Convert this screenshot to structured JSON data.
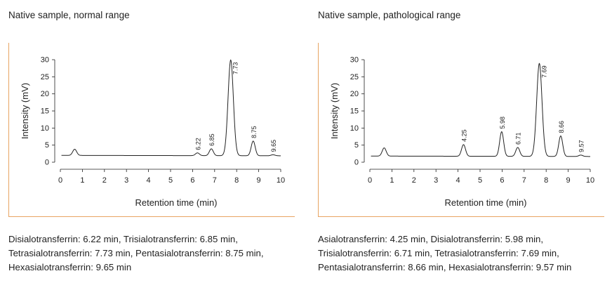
{
  "panels": [
    {
      "title": "Native sample, normal range",
      "caption_lines": [
        "Disialotransferrin: 6.22 min, Trisialotransferrin: 6.85 min,",
        "Tetrasialotransferrin: 7.73 min, Pentasialotransferrin: 8.75 min,",
        "Hexasialotransferrin: 9.65 min"
      ]
    },
    {
      "title": "Native sample, pathological range",
      "caption_lines": [
        "Asialotransferrin: 4.25 min, Disialotransferrin: 5.98 min,",
        "Trisialotransferrin: 6.71 min, Tetrasialotransferrin: 7.69 min,",
        "Pentasialotransferrin: 8.66 min, Hexasialotransferrin: 9.57 min"
      ]
    }
  ],
  "colors": {
    "frame": "#e8a462",
    "trace": "#222222"
  },
  "chart_data": [
    {
      "type": "line",
      "title": "Native sample, normal range",
      "xlabel": "Retention time (min)",
      "ylabel": "Intensity (mV)",
      "xlim": [
        0,
        10
      ],
      "ylim": [
        0,
        30
      ],
      "xticks": [
        0,
        1,
        2,
        3,
        4,
        5,
        6,
        7,
        8,
        9,
        10
      ],
      "yticks": [
        0,
        5,
        10,
        15,
        20,
        25,
        30
      ],
      "baseline": 2.0,
      "peaks": [
        {
          "x": 0.65,
          "height": 1.8,
          "label": ""
        },
        {
          "x": 6.22,
          "height": 0.8,
          "label": "6.22"
        },
        {
          "x": 6.85,
          "height": 2.0,
          "label": "6.85"
        },
        {
          "x": 7.73,
          "height": 28.0,
          "label": "7.73"
        },
        {
          "x": 8.75,
          "height": 4.3,
          "label": "8.75"
        },
        {
          "x": 9.65,
          "height": 0.3,
          "label": "9.65"
        }
      ]
    },
    {
      "type": "line",
      "title": "Native sample, pathological range",
      "xlabel": "Retention time (min)",
      "ylabel": "Intensity (mV)",
      "xlim": [
        0,
        10
      ],
      "ylim": [
        0,
        30
      ],
      "xticks": [
        0,
        1,
        2,
        3,
        4,
        5,
        6,
        7,
        8,
        9,
        10
      ],
      "yticks": [
        0,
        5,
        10,
        15,
        20,
        25,
        30
      ],
      "baseline": 1.8,
      "peaks": [
        {
          "x": 0.65,
          "height": 2.4,
          "label": ""
        },
        {
          "x": 4.25,
          "height": 3.4,
          "label": "4.25"
        },
        {
          "x": 5.98,
          "height": 7.2,
          "label": "5.98"
        },
        {
          "x": 6.71,
          "height": 2.6,
          "label": "6.71"
        },
        {
          "x": 7.69,
          "height": 27.2,
          "label": "7.69"
        },
        {
          "x": 8.66,
          "height": 6.0,
          "label": "8.66"
        },
        {
          "x": 9.57,
          "height": 0.4,
          "label": "9.57"
        }
      ]
    }
  ]
}
